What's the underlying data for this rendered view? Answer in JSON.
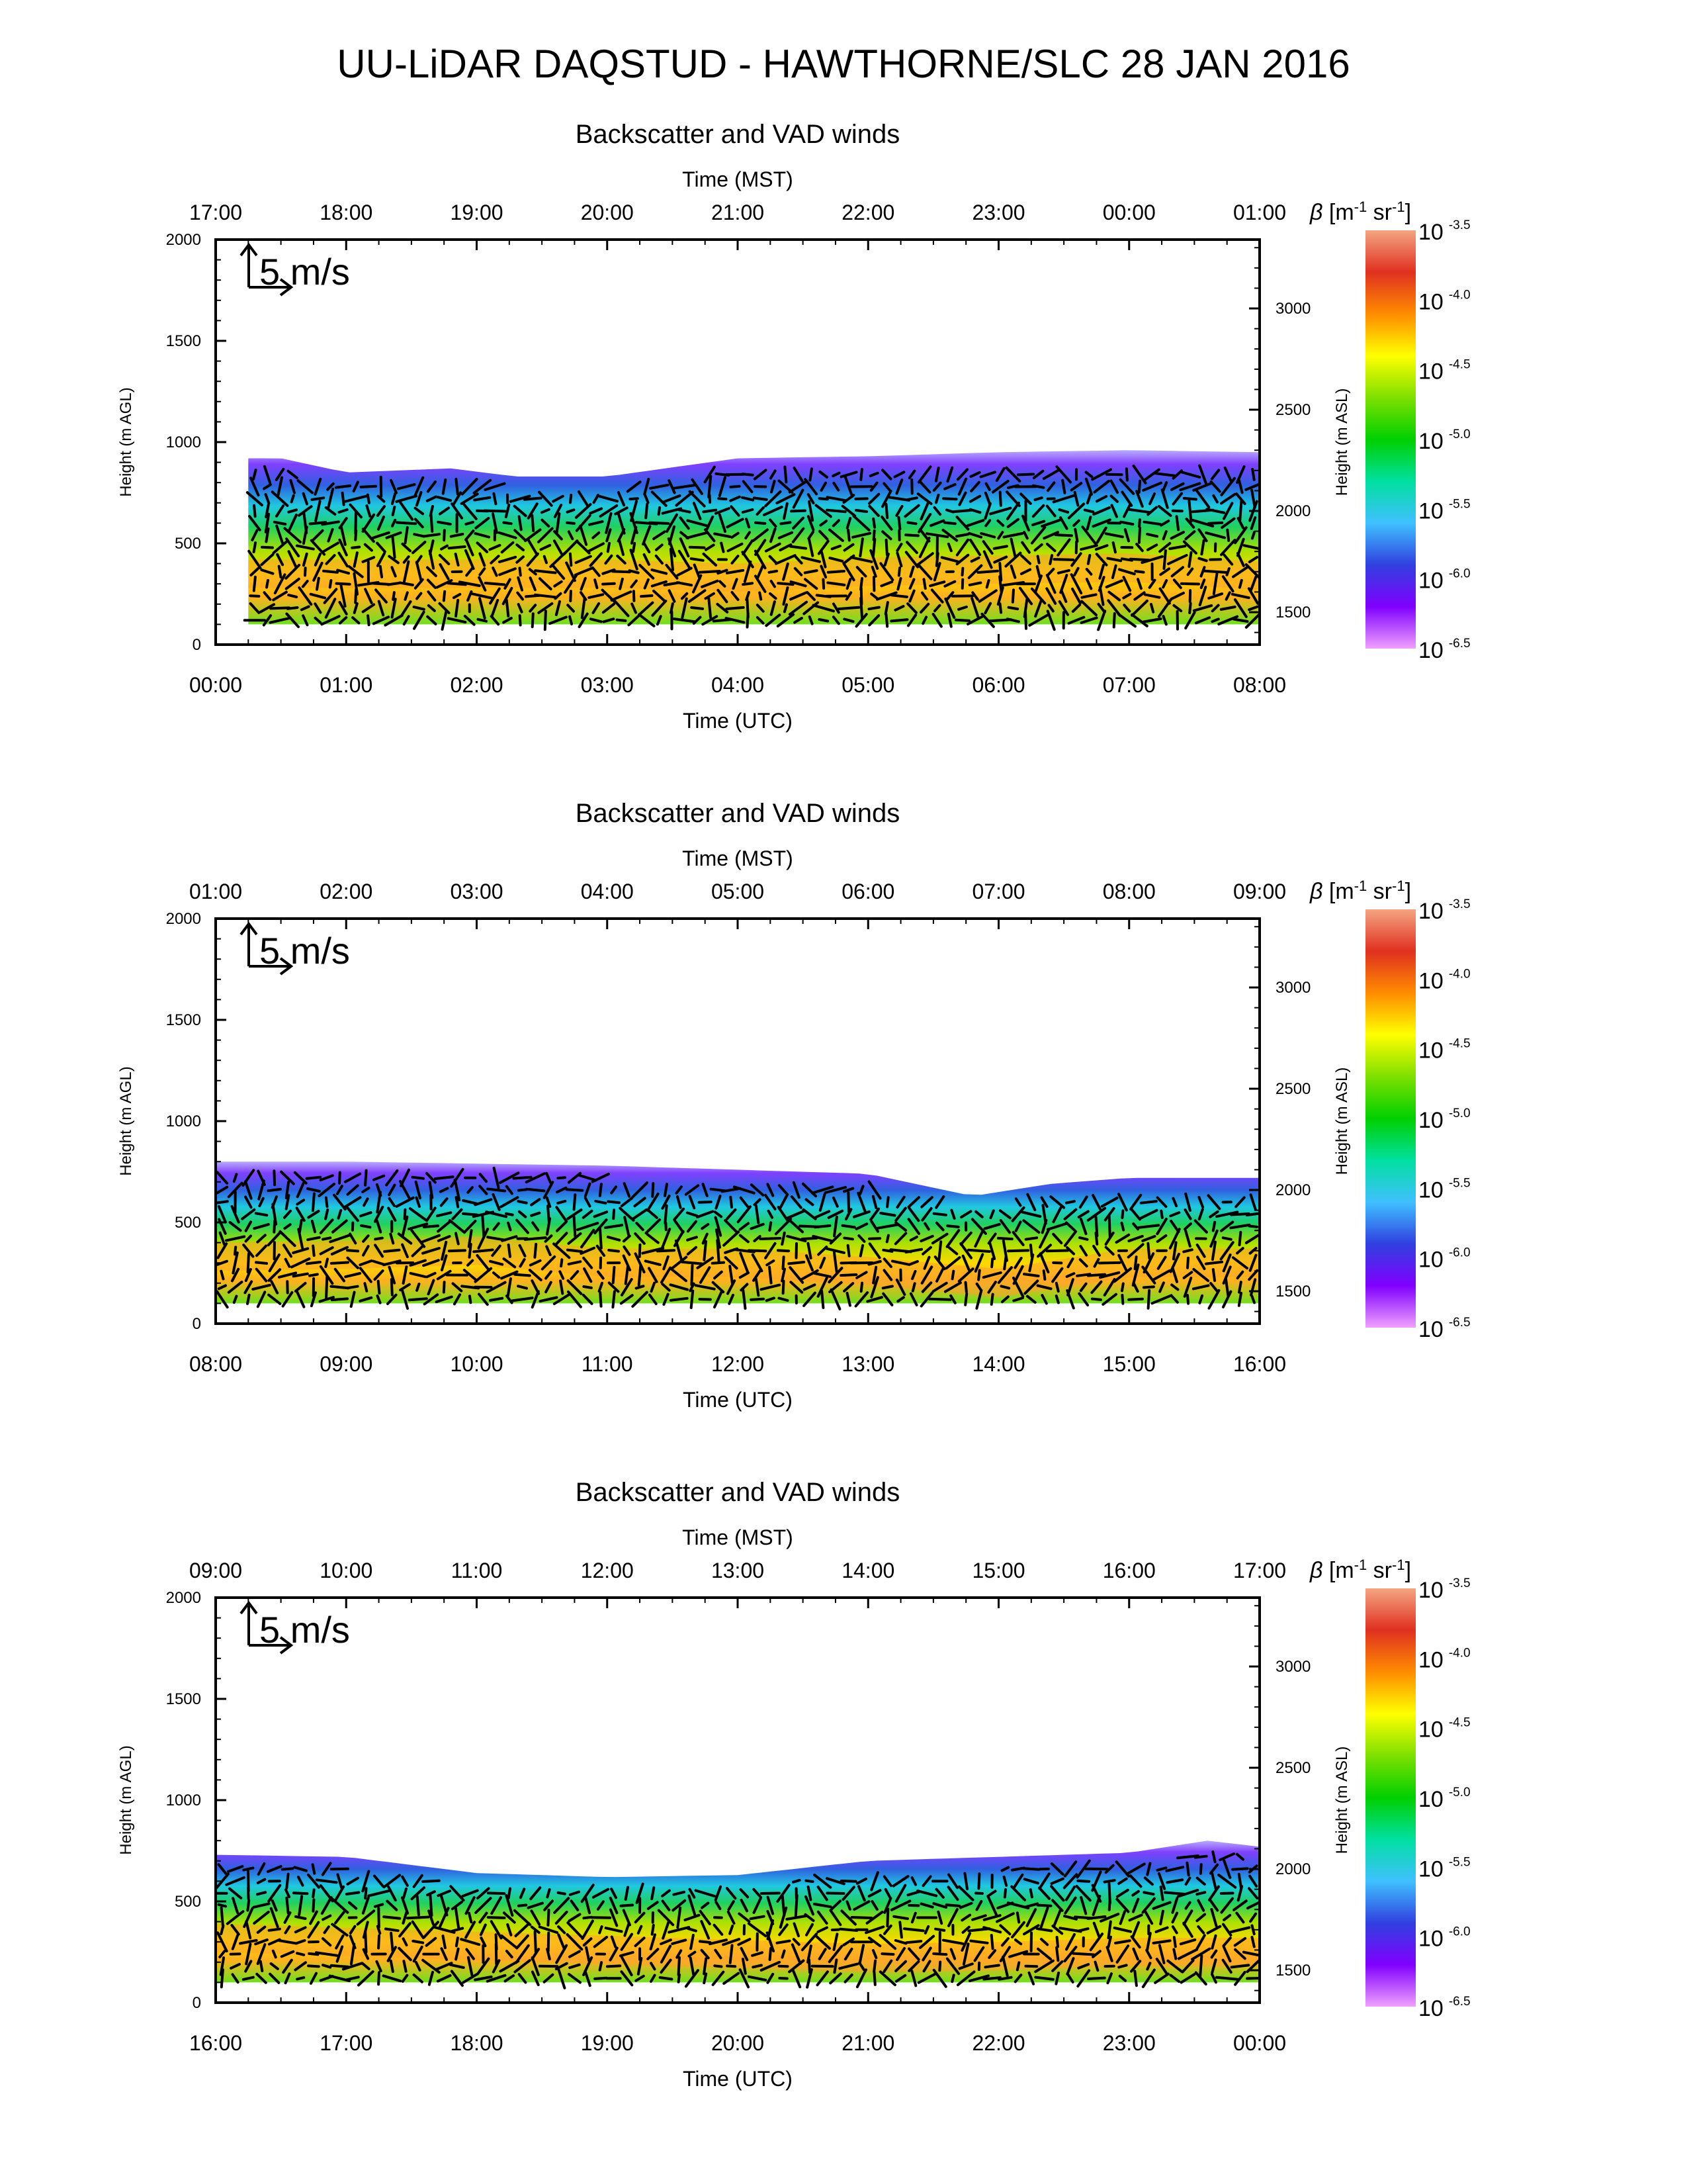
{
  "main_title": "UU-LiDAR DAQSTUD - HAWTHORNE/SLC 28 JAN 2016",
  "reference_arrow_label": "5 m/s",
  "colorbar": {
    "label_symbol": "β",
    "label_rest": "[m",
    "label_exp1": "-1",
    "label_sr": " sr",
    "label_exp2": "-1",
    "label_close": "]",
    "base": "10",
    "exponents": [
      "-3.5",
      "-4.0",
      "-4.5",
      "-5.0",
      "-5.5",
      "-6.0",
      "-6.5"
    ],
    "scale": "log10",
    "colors_top_to_bottom": [
      "#f4a582",
      "#e03020",
      "#ff8c00",
      "#ffff00",
      "#7ee000",
      "#00d000",
      "#00e0a0",
      "#40c0ff",
      "#3040e0",
      "#8000ff",
      "#f0a0ff"
    ]
  },
  "chart_data": [
    {
      "type": "heatmap",
      "title": "Backscatter and VAD winds",
      "top_axis_title": "Time (MST)",
      "top_ticks": [
        "17:00",
        "18:00",
        "19:00",
        "20:00",
        "21:00",
        "22:00",
        "23:00",
        "00:00",
        "01:00"
      ],
      "xlabel": "Time (UTC)",
      "bottom_ticks": [
        "00:00",
        "01:00",
        "02:00",
        "03:00",
        "04:00",
        "05:00",
        "06:00",
        "07:00",
        "08:00"
      ],
      "ylabel_left": "Height (m AGL)",
      "left_ticks": [
        "0",
        "500",
        "1000",
        "1500",
        "2000"
      ],
      "ylim_left": [
        0,
        2000
      ],
      "ylabel_right": "Height (m ASL)",
      "right_ticks": [
        "1500",
        "2000",
        "2500",
        "3000"
      ],
      "ylim_right": [
        1340,
        3340
      ],
      "xlim_hours": [
        0,
        8
      ],
      "layer_top_m_agl": [
        [
          0.25,
          920
        ],
        [
          0.5,
          920
        ],
        [
          1.0,
          850
        ],
        [
          1.8,
          870
        ],
        [
          2.3,
          830
        ],
        [
          3.0,
          830
        ],
        [
          4.0,
          920
        ],
        [
          5.0,
          930
        ],
        [
          6.0,
          950
        ],
        [
          7.0,
          960
        ],
        [
          8.0,
          950
        ]
      ],
      "max_backscatter_height_m_agl": [
        [
          0.25,
          350
        ],
        [
          3.0,
          350
        ],
        [
          4.0,
          330
        ],
        [
          5.0,
          360
        ],
        [
          6.0,
          370
        ],
        [
          7.0,
          380
        ],
        [
          8.0,
          340
        ]
      ]
    },
    {
      "type": "heatmap",
      "title": "Backscatter and VAD winds",
      "top_axis_title": "Time (MST)",
      "top_ticks": [
        "01:00",
        "02:00",
        "03:00",
        "04:00",
        "05:00",
        "06:00",
        "07:00",
        "08:00",
        "09:00"
      ],
      "xlabel": "Time (UTC)",
      "bottom_ticks": [
        "08:00",
        "09:00",
        "10:00",
        "11:00",
        "12:00",
        "13:00",
        "14:00",
        "15:00",
        "16:00"
      ],
      "ylabel_left": "Height (m AGL)",
      "left_ticks": [
        "0",
        "500",
        "1000",
        "1500",
        "2000"
      ],
      "ylim_left": [
        0,
        2000
      ],
      "ylabel_right": "Height (m ASL)",
      "right_ticks": [
        "1500",
        "2000",
        "2500",
        "3000"
      ],
      "ylim_right": [
        1340,
        3340
      ],
      "xlim_hours": [
        8,
        16
      ],
      "layer_top_m_agl": [
        [
          8.0,
          800
        ],
        [
          9.0,
          800
        ],
        [
          10.0,
          790
        ],
        [
          11.0,
          780
        ],
        [
          12.0,
          760
        ],
        [
          13.0,
          740
        ],
        [
          13.8,
          630
        ],
        [
          14.4,
          690
        ],
        [
          15.0,
          720
        ],
        [
          16.0,
          720
        ]
      ],
      "max_backscatter_height_m_agl": [
        [
          8.0,
          330
        ],
        [
          9.0,
          340
        ],
        [
          10.0,
          360
        ],
        [
          11.0,
          300
        ],
        [
          12.0,
          300
        ],
        [
          13.0,
          260
        ],
        [
          14.0,
          200
        ],
        [
          15.0,
          300
        ],
        [
          16.0,
          300
        ]
      ]
    },
    {
      "type": "heatmap",
      "title": "Backscatter and VAD winds",
      "top_axis_title": "Time (MST)",
      "top_ticks": [
        "09:00",
        "10:00",
        "11:00",
        "12:00",
        "13:00",
        "14:00",
        "15:00",
        "16:00",
        "17:00"
      ],
      "xlabel": "Time (UTC)",
      "bottom_ticks": [
        "16:00",
        "17:00",
        "18:00",
        "19:00",
        "20:00",
        "21:00",
        "22:00",
        "23:00",
        "00:00"
      ],
      "ylabel_left": "Height (m AGL)",
      "left_ticks": [
        "0",
        "500",
        "1000",
        "1500",
        "2000"
      ],
      "ylim_left": [
        0,
        2000
      ],
      "ylabel_right": "Height (m ASL)",
      "right_ticks": [
        "1500",
        "2000",
        "2500",
        "3000"
      ],
      "ylim_right": [
        1340,
        3340
      ],
      "xlim_hours": [
        16,
        24
      ],
      "layer_top_m_agl": [
        [
          16.0,
          730
        ],
        [
          17.0,
          720
        ],
        [
          18.0,
          640
        ],
        [
          19.0,
          620
        ],
        [
          20.0,
          630
        ],
        [
          21.0,
          700
        ],
        [
          22.0,
          720
        ],
        [
          23.0,
          740
        ],
        [
          23.6,
          800
        ],
        [
          24.0,
          770
        ]
      ],
      "max_backscatter_height_m_agl": [
        [
          16.0,
          320
        ],
        [
          17.0,
          300
        ],
        [
          18.0,
          280
        ],
        [
          19.0,
          260
        ],
        [
          20.0,
          240
        ],
        [
          21.0,
          220
        ],
        [
          22.0,
          230
        ],
        [
          23.0,
          250
        ],
        [
          24.0,
          250
        ]
      ]
    }
  ]
}
